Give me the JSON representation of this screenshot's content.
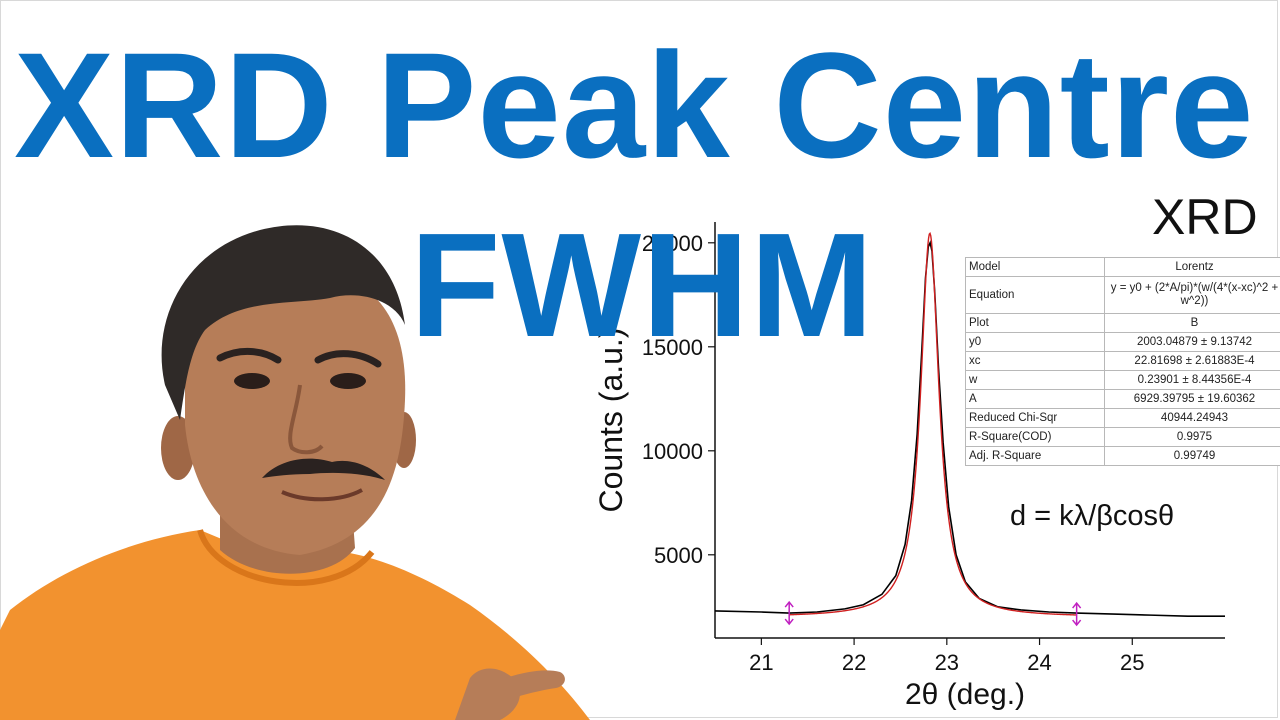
{
  "headline": {
    "line1": "XRD Peak Centre",
    "line2": "FWHM",
    "color": "#0a6fc0"
  },
  "chart_label": "XRD",
  "formula": "d = kλ/βcosθ",
  "fit_table": {
    "rows": [
      {
        "key": "Model",
        "value": "Lorentz"
      },
      {
        "key": "Equation",
        "value": "y = y0 + (2*A/pi)*(w/(4*(x-xc)^2 + w^2))"
      },
      {
        "key": "Plot",
        "value": "B"
      },
      {
        "key": "y0",
        "value": "2003.04879 ± 9.13742"
      },
      {
        "key": "xc",
        "value": "22.81698 ± 2.61883E-4"
      },
      {
        "key": "w",
        "value": "0.23901 ± 8.44356E-4"
      },
      {
        "key": "A",
        "value": "6929.39795 ± 19.60362"
      },
      {
        "key": "Reduced Chi-Sqr",
        "value": "40944.24943"
      },
      {
        "key": "R-Square(COD)",
        "value": "0.9975"
      },
      {
        "key": "Adj. R-Square",
        "value": "0.99749"
      }
    ]
  },
  "chart_data": {
    "type": "line",
    "xlabel": "2θ (deg.)",
    "ylabel": "Counts (a.u.)",
    "xlim": [
      20.5,
      26.0
    ],
    "ylim": [
      1000,
      21000
    ],
    "xticks": [
      "21",
      "22",
      "23",
      "24",
      "25"
    ],
    "xtick_values": [
      21,
      22,
      23,
      24,
      25
    ],
    "yticks": [
      "5000",
      "10000",
      "15000",
      "20000"
    ],
    "ytick_values": [
      5000,
      10000,
      15000,
      20000
    ],
    "series": [
      {
        "kind": "measured",
        "color": "#000000",
        "x": [
          20.5,
          21.0,
          21.3,
          21.6,
          21.9,
          22.1,
          22.3,
          22.45,
          22.55,
          22.62,
          22.68,
          22.73,
          22.77,
          22.8,
          22.82,
          22.84,
          22.87,
          22.91,
          22.96,
          23.02,
          23.1,
          23.2,
          23.35,
          23.55,
          23.8,
          24.1,
          24.4,
          24.8,
          25.2,
          25.6,
          26.0
        ],
        "y": [
          2300,
          2250,
          2200,
          2250,
          2400,
          2600,
          3100,
          4000,
          5500,
          7600,
          10800,
          14800,
          18300,
          19800,
          20000,
          19600,
          17600,
          14000,
          10400,
          7300,
          5000,
          3700,
          2900,
          2500,
          2350,
          2250,
          2200,
          2150,
          2100,
          2050,
          2050
        ]
      },
      {
        "kind": "fit",
        "color": "#d02020",
        "x_start": 21.3,
        "x_end": 24.4,
        "y0": 2003.04879,
        "xc": 22.81698,
        "w": 0.23901,
        "A": 6929.39795
      }
    ],
    "markers": [
      {
        "x": 21.3,
        "y": 2200,
        "color": "#c020c0"
      },
      {
        "x": 24.4,
        "y": 2150,
        "color": "#c020c0"
      }
    ]
  }
}
